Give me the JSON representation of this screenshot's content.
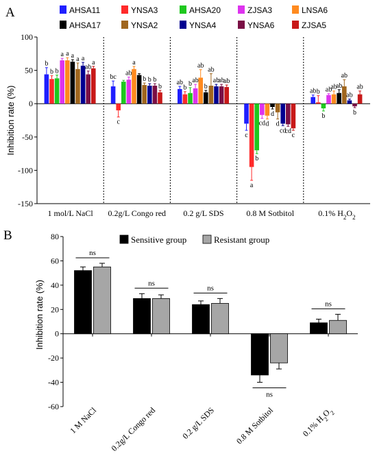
{
  "chart_data": [
    {
      "panel_label": "A",
      "type": "bar",
      "ylabel": "Inhibition rate (%)",
      "ylim": [
        -150,
        100
      ],
      "yticks": [
        "100",
        "50",
        "0",
        "-50",
        "-100",
        "-150"
      ],
      "categories": [
        "1 mol/L NaCl",
        "0.2g/L Congo red",
        "0.2 g/L SDS",
        "0.8 M Sotbitol",
        "0.1% H2O2"
      ],
      "legend_position": "top",
      "series": [
        {
          "name": "AHSA11",
          "color": "#1f1fff",
          "values": [
            44,
            26,
            22,
            -30,
            10
          ],
          "errors": [
            10,
            8,
            4,
            10,
            3
          ],
          "labels": [
            "b",
            "bc",
            "ab",
            "c",
            "ab"
          ]
        },
        {
          "name": "YNSA3",
          "color": "#ff2a2a",
          "values": [
            37,
            -10,
            14,
            -95,
            2
          ],
          "errors": [
            5,
            10,
            4,
            20,
            10
          ],
          "labels": [
            "b",
            "c",
            "b",
            "a",
            "b"
          ]
        },
        {
          "name": "AHSA20",
          "color": "#1ec81e",
          "values": [
            38,
            33,
            16,
            -70,
            -7
          ],
          "errors": [
            5,
            2,
            8,
            5,
            4
          ],
          "labels": [
            "b",
            "",
            "b",
            "b",
            "b"
          ]
        },
        {
          "name": "ZJSA3",
          "color": "#dd33ee",
          "values": [
            65,
            36,
            23,
            -17,
            13
          ],
          "errors": [
            3,
            4,
            6,
            5,
            2
          ],
          "labels": [
            "a",
            "ab",
            "ab",
            "cd",
            "ab"
          ]
        },
        {
          "name": "LNSA6",
          "color": "#ff8a1f",
          "values": [
            65,
            52,
            39,
            -18,
            14
          ],
          "errors": [
            4,
            4,
            12,
            5,
            5
          ],
          "labels": [
            "a",
            "a",
            "ab",
            "d",
            "ab"
          ]
        },
        {
          "name": "AHSA17",
          "color": "#000000",
          "values": [
            63,
            43,
            17,
            -5,
            16
          ],
          "errors": [
            3,
            2,
            3,
            3,
            5
          ],
          "labels": [
            "a",
            "",
            "b",
            "d",
            "ab"
          ]
        },
        {
          "name": "YNSA2",
          "color": "#a0661e",
          "values": [
            52,
            28,
            27,
            -13,
            26
          ],
          "errors": [
            9,
            3,
            18,
            10,
            10
          ],
          "labels": [
            "a",
            "b",
            "ab",
            "d",
            "ab"
          ]
        },
        {
          "name": "YNSA4",
          "color": "#000090",
          "values": [
            57,
            27,
            26,
            -30,
            5
          ],
          "errors": [
            5,
            3,
            3,
            3,
            2
          ],
          "labels": [
            "a",
            "b",
            "ab",
            "cd",
            "ab"
          ]
        },
        {
          "name": "YNSA6",
          "color": "#7a0f45",
          "values": [
            44,
            27,
            26,
            -31,
            -4
          ],
          "errors": [
            5,
            3,
            3,
            3,
            2
          ],
          "labels": [
            "ab",
            "b",
            "ab",
            "cd",
            "b"
          ]
        },
        {
          "name": "ZJSA5",
          "color": "#c81919",
          "values": [
            53,
            17,
            25,
            -37,
            14
          ],
          "errors": [
            3,
            3,
            3,
            3,
            5
          ],
          "labels": [
            "a",
            "b",
            "ab",
            "c",
            "ab"
          ]
        }
      ]
    },
    {
      "panel_label": "B",
      "type": "bar",
      "ylabel": "Inhibition rate (%)",
      "ylim": [
        -60,
        80
      ],
      "yticks": [
        "80",
        "60",
        "40",
        "20",
        "0",
        "-20",
        "-40",
        "-60"
      ],
      "categories": [
        "1 M NaCl",
        "0.2g/L Congo red",
        "0.2 g/L SDS",
        "0.8 M Sotbitol",
        "0.1% H2O2"
      ],
      "legend_position": "top",
      "series": [
        {
          "name": "Sensitive group",
          "color": "#000000",
          "values": [
            52,
            29,
            24,
            -34,
            9
          ],
          "errors": [
            3,
            4,
            3,
            6,
            3
          ]
        },
        {
          "name": "Resistant group",
          "color": "#a6a6a6",
          "values": [
            55,
            29,
            25,
            -24,
            11
          ],
          "errors": [
            3,
            3,
            4,
            5,
            5
          ]
        }
      ],
      "significance": [
        "ns",
        "ns",
        "ns",
        "ns",
        "ns"
      ]
    }
  ]
}
